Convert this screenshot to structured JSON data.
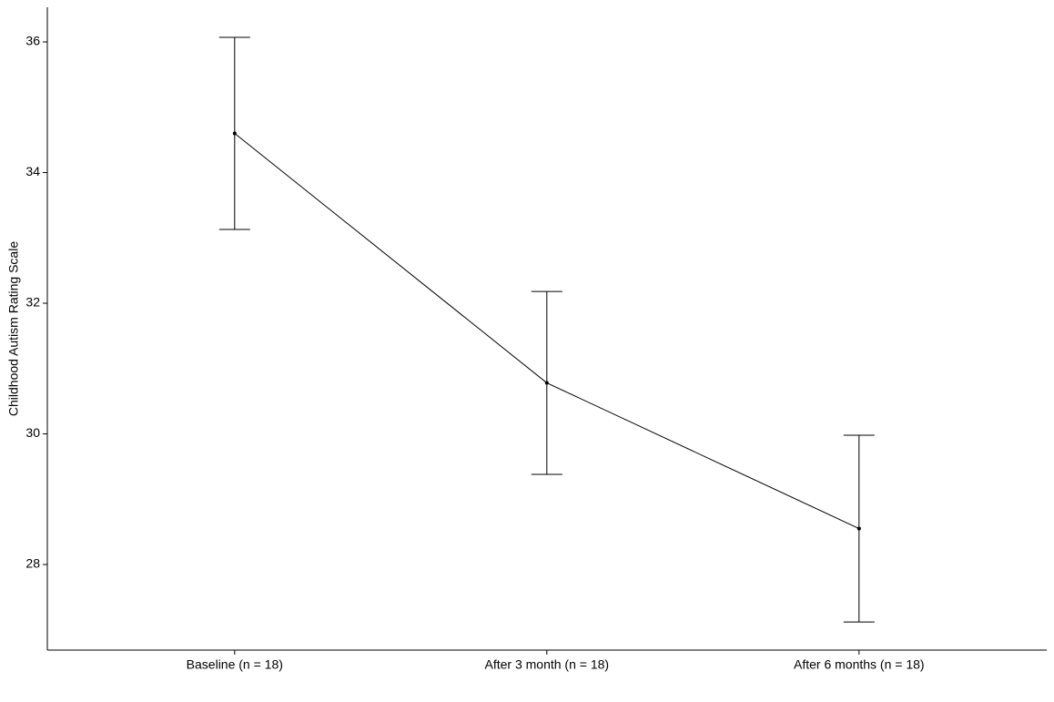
{
  "chart_data": {
    "type": "line",
    "y_label": "Childhood Autism Rating Scale",
    "categories": [
      "Baseline (n = 18)",
      "After 3 month (n = 18)",
      "After 6 months (n = 18)"
    ],
    "values": [
      34.6,
      30.78,
      28.55
    ],
    "errors": [
      1.47,
      1.4,
      1.43
    ],
    "color": "#000000",
    "ylim": [
      26.69,
      36.53
    ],
    "yticks": [
      28,
      30,
      32,
      34,
      36
    ],
    "grid": false
  }
}
